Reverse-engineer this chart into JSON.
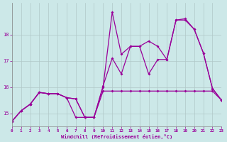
{
  "x": [
    0,
    1,
    2,
    3,
    4,
    5,
    6,
    7,
    8,
    9,
    10,
    11,
    12,
    13,
    14,
    15,
    16,
    17,
    18,
    19,
    20,
    21,
    22,
    23
  ],
  "line1": [
    14.7,
    15.1,
    15.35,
    15.8,
    15.75,
    15.75,
    15.6,
    15.55,
    14.85,
    14.85,
    15.85,
    15.85,
    15.85,
    15.85,
    15.85,
    15.85,
    15.85,
    15.85,
    15.85,
    15.85,
    15.85,
    15.85,
    15.85,
    15.5
  ],
  "line2": [
    14.7,
    15.1,
    15.35,
    15.8,
    15.75,
    15.75,
    15.6,
    14.85,
    14.85,
    14.85,
    16.0,
    18.85,
    17.25,
    17.55,
    17.55,
    16.5,
    17.05,
    17.05,
    18.55,
    18.55,
    18.2,
    17.3,
    15.95,
    15.5
  ],
  "line3": [
    14.7,
    15.1,
    15.35,
    15.8,
    15.75,
    15.75,
    15.6,
    15.55,
    14.85,
    14.85,
    16.05,
    17.1,
    16.5,
    17.55,
    17.55,
    17.75,
    17.55,
    17.05,
    18.55,
    18.6,
    18.2,
    17.3,
    15.95,
    15.5
  ],
  "xlim": [
    0,
    23
  ],
  "ylim": [
    14.5,
    19.2
  ],
  "yticks": [
    15,
    16,
    17,
    18
  ],
  "xticks": [
    0,
    1,
    2,
    3,
    4,
    5,
    6,
    7,
    8,
    9,
    10,
    11,
    12,
    13,
    14,
    15,
    16,
    17,
    18,
    19,
    20,
    21,
    22,
    23
  ],
  "line_color": "#990099",
  "bg_color": "#cce8e8",
  "grid_color": "#b0c8c8",
  "xlabel": "Windchill (Refroidissement éolien,°C)"
}
